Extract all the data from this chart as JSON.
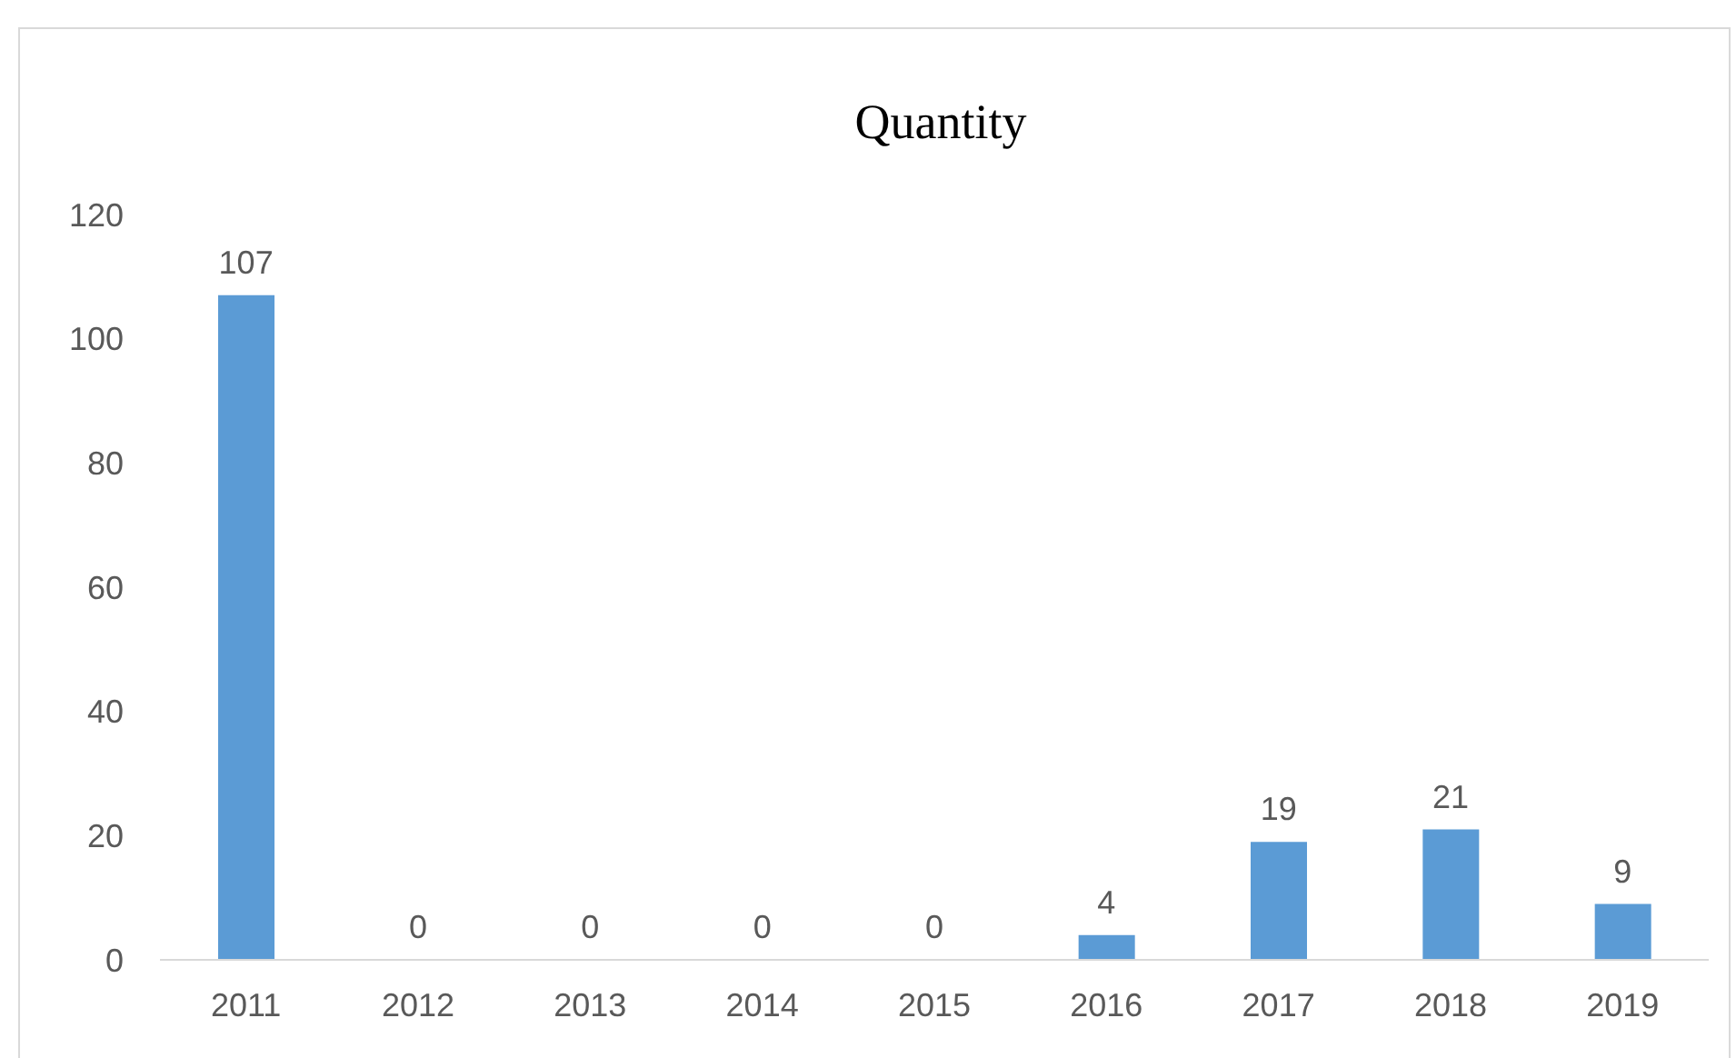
{
  "chart_data": {
    "type": "bar",
    "title": "Quantity",
    "categories": [
      "2011",
      "2012",
      "2013",
      "2014",
      "2015",
      "2016",
      "2017",
      "2018",
      "2019"
    ],
    "values": [
      107,
      0,
      0,
      0,
      0,
      4,
      19,
      21,
      9
    ],
    "color": "#5b9bd5",
    "ylim": [
      0,
      120
    ],
    "yticks": [
      0,
      20,
      40,
      60,
      80,
      100,
      120
    ],
    "grid": false,
    "data_labels": true
  }
}
